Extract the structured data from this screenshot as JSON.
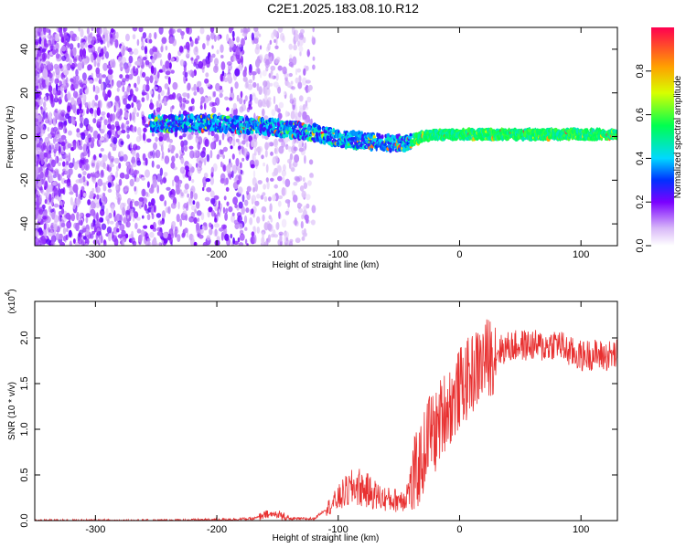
{
  "title": "C2E1.2025.183.08.10.R12",
  "chart_data": [
    {
      "type": "heatmap",
      "xlabel": "Height of straight line (km)",
      "ylabel": "Frequency (Hz)",
      "xlim": [
        -350,
        130
      ],
      "ylim": [
        -50,
        50
      ],
      "xticks": [
        -300,
        -200,
        -100,
        0,
        100
      ],
      "yticks": [
        -40,
        -20,
        0,
        20,
        40
      ],
      "colorbar": {
        "label": "Normalized spectral amplitude",
        "ticks": [
          "0.0",
          "0.2",
          "0.4",
          "0.6",
          "0.8"
        ],
        "range": [
          0,
          1
        ]
      },
      "signal_ridge": {
        "x": [
          -250,
          -200,
          -150,
          -120,
          -100,
          -80,
          -60,
          -45,
          -30,
          -20,
          0,
          50,
          100,
          130
        ],
        "frequency": [
          6,
          6,
          4,
          2,
          -1,
          -2,
          -3,
          -3,
          0,
          1,
          1,
          1,
          1,
          1
        ]
      },
      "grid": false
    },
    {
      "type": "line",
      "xlabel": "Height of straight line (km)",
      "ylabel": "SNR (10 * v/v)",
      "multiplier": "(x10",
      "multiplier_exp": "4",
      "xlim": [
        -350,
        130
      ],
      "ylim": [
        0,
        2.4
      ],
      "xticks": [
        -300,
        -200,
        -100,
        0,
        100
      ],
      "yticks": [
        "0.0",
        "0.5",
        "1.0",
        "1.5",
        "2.0"
      ],
      "color": "#e83030",
      "series": [
        {
          "x": [
            -350,
            -300,
            -250,
            -200,
            -170,
            -160,
            -150,
            -140,
            -120,
            -105,
            -95,
            -85,
            -75,
            -65,
            -55,
            -45,
            -38,
            -30,
            -25,
            -20,
            -15,
            -10,
            -5,
            0,
            10,
            20,
            30,
            40,
            50,
            60,
            70,
            80,
            90,
            100,
            110,
            120,
            130
          ],
          "values": [
            0.0,
            0.0,
            0.0,
            0.01,
            0.02,
            0.06,
            0.07,
            0.02,
            0.02,
            0.18,
            0.3,
            0.38,
            0.32,
            0.25,
            0.22,
            0.25,
            0.45,
            0.7,
            1.0,
            0.95,
            1.15,
            1.25,
            1.3,
            1.45,
            1.6,
            1.75,
            1.85,
            1.9,
            1.92,
            1.92,
            1.9,
            1.95,
            1.85,
            1.8,
            1.82,
            1.8,
            1.82
          ]
        }
      ],
      "grid": false
    }
  ]
}
